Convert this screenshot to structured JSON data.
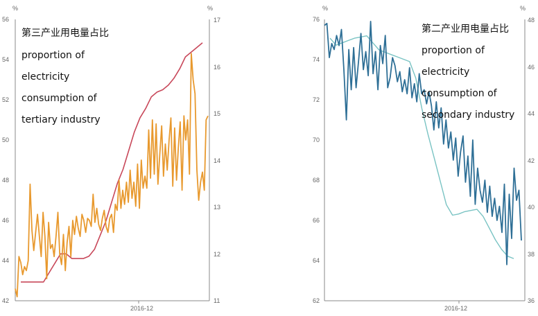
{
  "chart_data": [
    {
      "type": "line",
      "x_tick_labels": [
        "2016-12"
      ],
      "y_left": {
        "unit": "%",
        "ticks": [
          42,
          44,
          46,
          48,
          50,
          52,
          54,
          56
        ],
        "lim": [
          42,
          56
        ]
      },
      "y_right": {
        "unit": "%",
        "ticks": [
          11,
          12,
          13,
          14,
          15,
          16,
          17
        ],
        "lim": [
          11,
          17
        ]
      },
      "annotation": [
        "第三产业用电量占比",
        "proportion of",
        "electricity",
        "consumption of",
        "tertiary industry"
      ],
      "colors": {
        "monthly": "#e8992e",
        "smoothed": "#c8485a"
      },
      "series": [
        {
          "axis": "left",
          "color": "#e8992e",
          "values": [
            42.6,
            42.2,
            44.2,
            43.9,
            43.3,
            43.7,
            43.5,
            44.0,
            47.8,
            45.5,
            44.5,
            45.4,
            46.3,
            45.2,
            44.2,
            46.4,
            45.2,
            43.1,
            45.9,
            44.6,
            44.8,
            44.2,
            45.2,
            46.4,
            44.3,
            43.8,
            45.3,
            43.5,
            44.9,
            45.7,
            44.2,
            46.0,
            45.3,
            46.2,
            45.6,
            45.2,
            46.3,
            46.0,
            45.4,
            46.1,
            46.0,
            45.7,
            47.3,
            45.9,
            46.6,
            45.8,
            45.5,
            46.1,
            46.5,
            45.7,
            45.4,
            46.1,
            46.3,
            45.4,
            46.8,
            46.5,
            48.0,
            46.6,
            47.5,
            46.8,
            47.9,
            46.9,
            48.5,
            47.1,
            47.9,
            46.7,
            48.8,
            46.6,
            49.0,
            47.6,
            48.2,
            47.6,
            50.5,
            48.1,
            51.0,
            48.3,
            50.8,
            47.8,
            49.3,
            50.7,
            48.2,
            49.8,
            48.5,
            50.0,
            51.1,
            47.7,
            50.6,
            48.0,
            49.6,
            50.9,
            47.5,
            51.2,
            50.0,
            51.0,
            48.3,
            54.3,
            53.0,
            52.3,
            48.5,
            47.0,
            47.9,
            48.4,
            47.5,
            51.0,
            51.2
          ]
        },
        {
          "axis": "right",
          "color": "#c8485a",
          "values": [
            11.4,
            11.4,
            11.4,
            11.4,
            11.4,
            11.6,
            11.8,
            12.0,
            12.0,
            11.9,
            11.9,
            11.9,
            11.95,
            12.1,
            12.4,
            12.7,
            13.1,
            13.5,
            13.8,
            14.2,
            14.6,
            14.9,
            15.1,
            15.35,
            15.45,
            15.5,
            15.6,
            15.75,
            15.95,
            16.2,
            16.3,
            16.4,
            16.5
          ]
        }
      ]
    },
    {
      "type": "line",
      "x_tick_labels": [
        "2016-12"
      ],
      "y_left": {
        "unit": "%",
        "ticks": [
          62,
          64,
          66,
          68,
          70,
          72,
          74,
          76
        ],
        "lim": [
          62,
          76
        ]
      },
      "y_right": {
        "unit": "%",
        "ticks": [
          36,
          38,
          40,
          42,
          44,
          46,
          48
        ],
        "lim": [
          36,
          48
        ]
      },
      "annotation": [
        "第二产业用电量占比",
        "proportion of",
        "electricity",
        "consumption of",
        "secondary industry"
      ],
      "colors": {
        "monthly": "#2e6f96",
        "smoothed": "#79c3c3"
      },
      "series": [
        {
          "axis": "left",
          "color": "#2e6f96",
          "values": [
            75.7,
            75.8,
            74.1,
            74.8,
            74.5,
            75.2,
            74.7,
            75.5,
            73.5,
            71.0,
            74.5,
            72.5,
            74.6,
            72.6,
            73.9,
            75.3,
            73.5,
            74.4,
            73.2,
            75.9,
            73.3,
            74.4,
            72.5,
            74.7,
            73.8,
            75.2,
            72.6,
            73.1,
            74.1,
            73.7,
            72.9,
            73.4,
            72.4,
            73.0,
            72.3,
            73.6,
            72.1,
            72.8,
            71.9,
            73.3,
            72.3,
            72.5,
            71.8,
            72.4,
            71.7,
            70.5,
            71.9,
            70.6,
            71.6,
            69.8,
            71.0,
            69.6,
            70.4,
            69.0,
            70.1,
            68.2,
            69.4,
            70.2,
            67.9,
            69.2,
            67.2,
            70.0,
            66.8,
            68.6,
            67.5,
            66.9,
            68.0,
            66.4,
            67.7,
            66.2,
            67.1,
            66.0,
            66.7,
            65.4,
            67.8,
            63.8,
            67.3,
            65.1,
            68.6,
            67.0,
            67.5,
            65.0
          ]
        },
        {
          "axis": "right",
          "color": "#79c3c3",
          "values": [
            47.2,
            46.9,
            47.0,
            47.1,
            47.2,
            47.25,
            47.3,
            47.0,
            46.7,
            46.6,
            46.5,
            46.4,
            46.3,
            46.2,
            45.5,
            44.2,
            43.1,
            42.1,
            41.1,
            40.1,
            39.65,
            39.7,
            39.8,
            39.85,
            39.9,
            39.6,
            39.1,
            38.6,
            38.2,
            37.9,
            37.8
          ]
        }
      ]
    }
  ]
}
